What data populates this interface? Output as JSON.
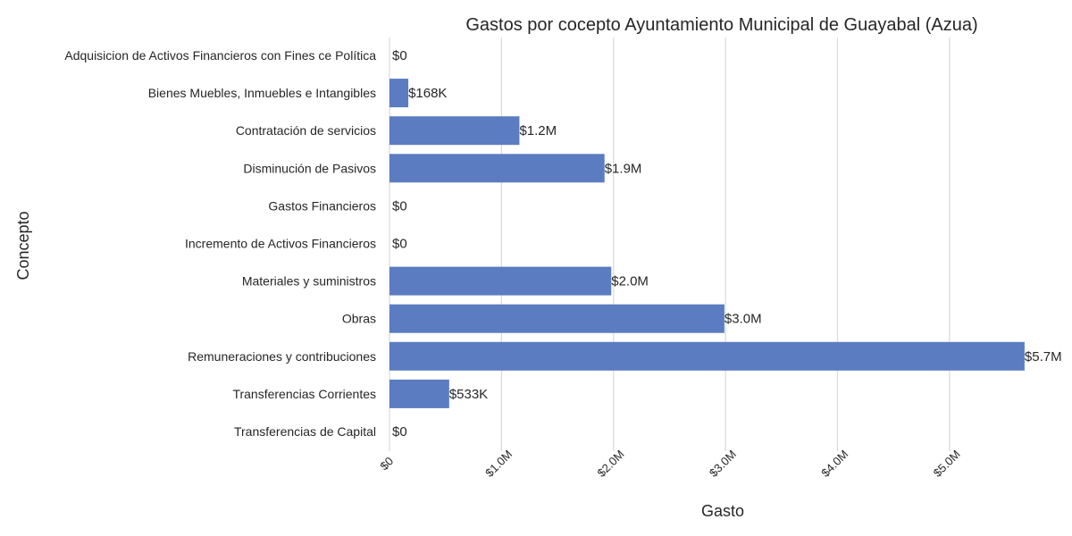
{
  "chart_data": {
    "type": "bar",
    "orientation": "horizontal",
    "title": "Gastos por cocepto Ayuntamiento Municipal de Guayabal (Azua)",
    "xlabel": "Gasto",
    "ylabel": "Concepto",
    "categories": [
      "Adquisicion de Activos Financieros con Fines ce Política",
      "Bienes Muebles, Inmuebles e Intangibles",
      "Contratación de servicios",
      "Disminución de Pasivos",
      "Gastos Financieros",
      "Incremento de Activos Financieros",
      "Materiales y suministros",
      "Obras",
      "Remuneraciones y contribuciones",
      "Transferencias Corrientes",
      "Transferencias de Capital"
    ],
    "values": [
      0,
      168000,
      1160000,
      1920000,
      0,
      0,
      1980000,
      2990000,
      5670000,
      533000,
      0
    ],
    "data_labels": [
      "$0",
      "$168K",
      "$1.2M",
      "$1.9M",
      "$0",
      "$0",
      "$2.0M",
      "$3.0M",
      "$5.7M",
      "$533K",
      "$0"
    ],
    "x_ticks": [
      {
        "value": 0,
        "label": "$0"
      },
      {
        "value": 1000000,
        "label": "$1.0M"
      },
      {
        "value": 2000000,
        "label": "$2.0M"
      },
      {
        "value": 3000000,
        "label": "$3.0M"
      },
      {
        "value": 4000000,
        "label": "$4.0M"
      },
      {
        "value": 5000000,
        "label": "$5.0M"
      }
    ],
    "xlim": [
      0,
      5950000
    ],
    "grid": "vertical",
    "bar_color": "#5b7cc0",
    "grid_color": "#d9d9d9",
    "text_color": "#262626"
  }
}
